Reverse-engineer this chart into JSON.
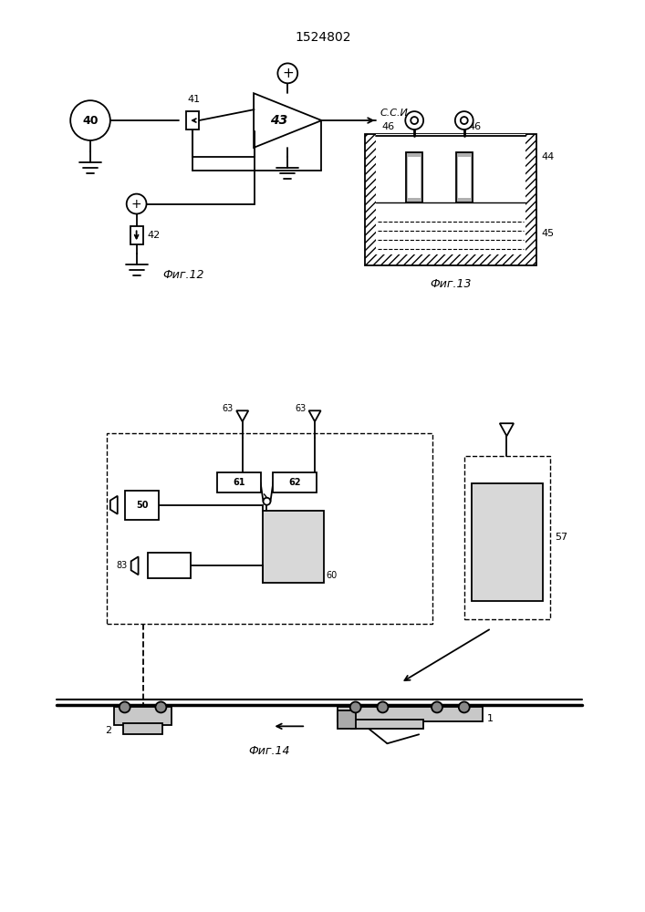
{
  "title": "1524802",
  "fig12_label": "Фиг.12",
  "fig13_label": "Фиг.13",
  "fig14_label": "Фиг.14",
  "bg_color": "#ffffff",
  "line_color": "#000000",
  "labels": {
    "40": "40",
    "41": "41",
    "42": "42",
    "43": "43",
    "44": "44",
    "45": "45",
    "46a": "46",
    "46b": "46",
    "50": "50",
    "57": "57",
    "60": "60",
    "61": "61",
    "62": "62",
    "63a": "63",
    "63b": "63",
    "83": "83",
    "1": "1",
    "2": "2",
    "CCH": "С.С.И"
  }
}
